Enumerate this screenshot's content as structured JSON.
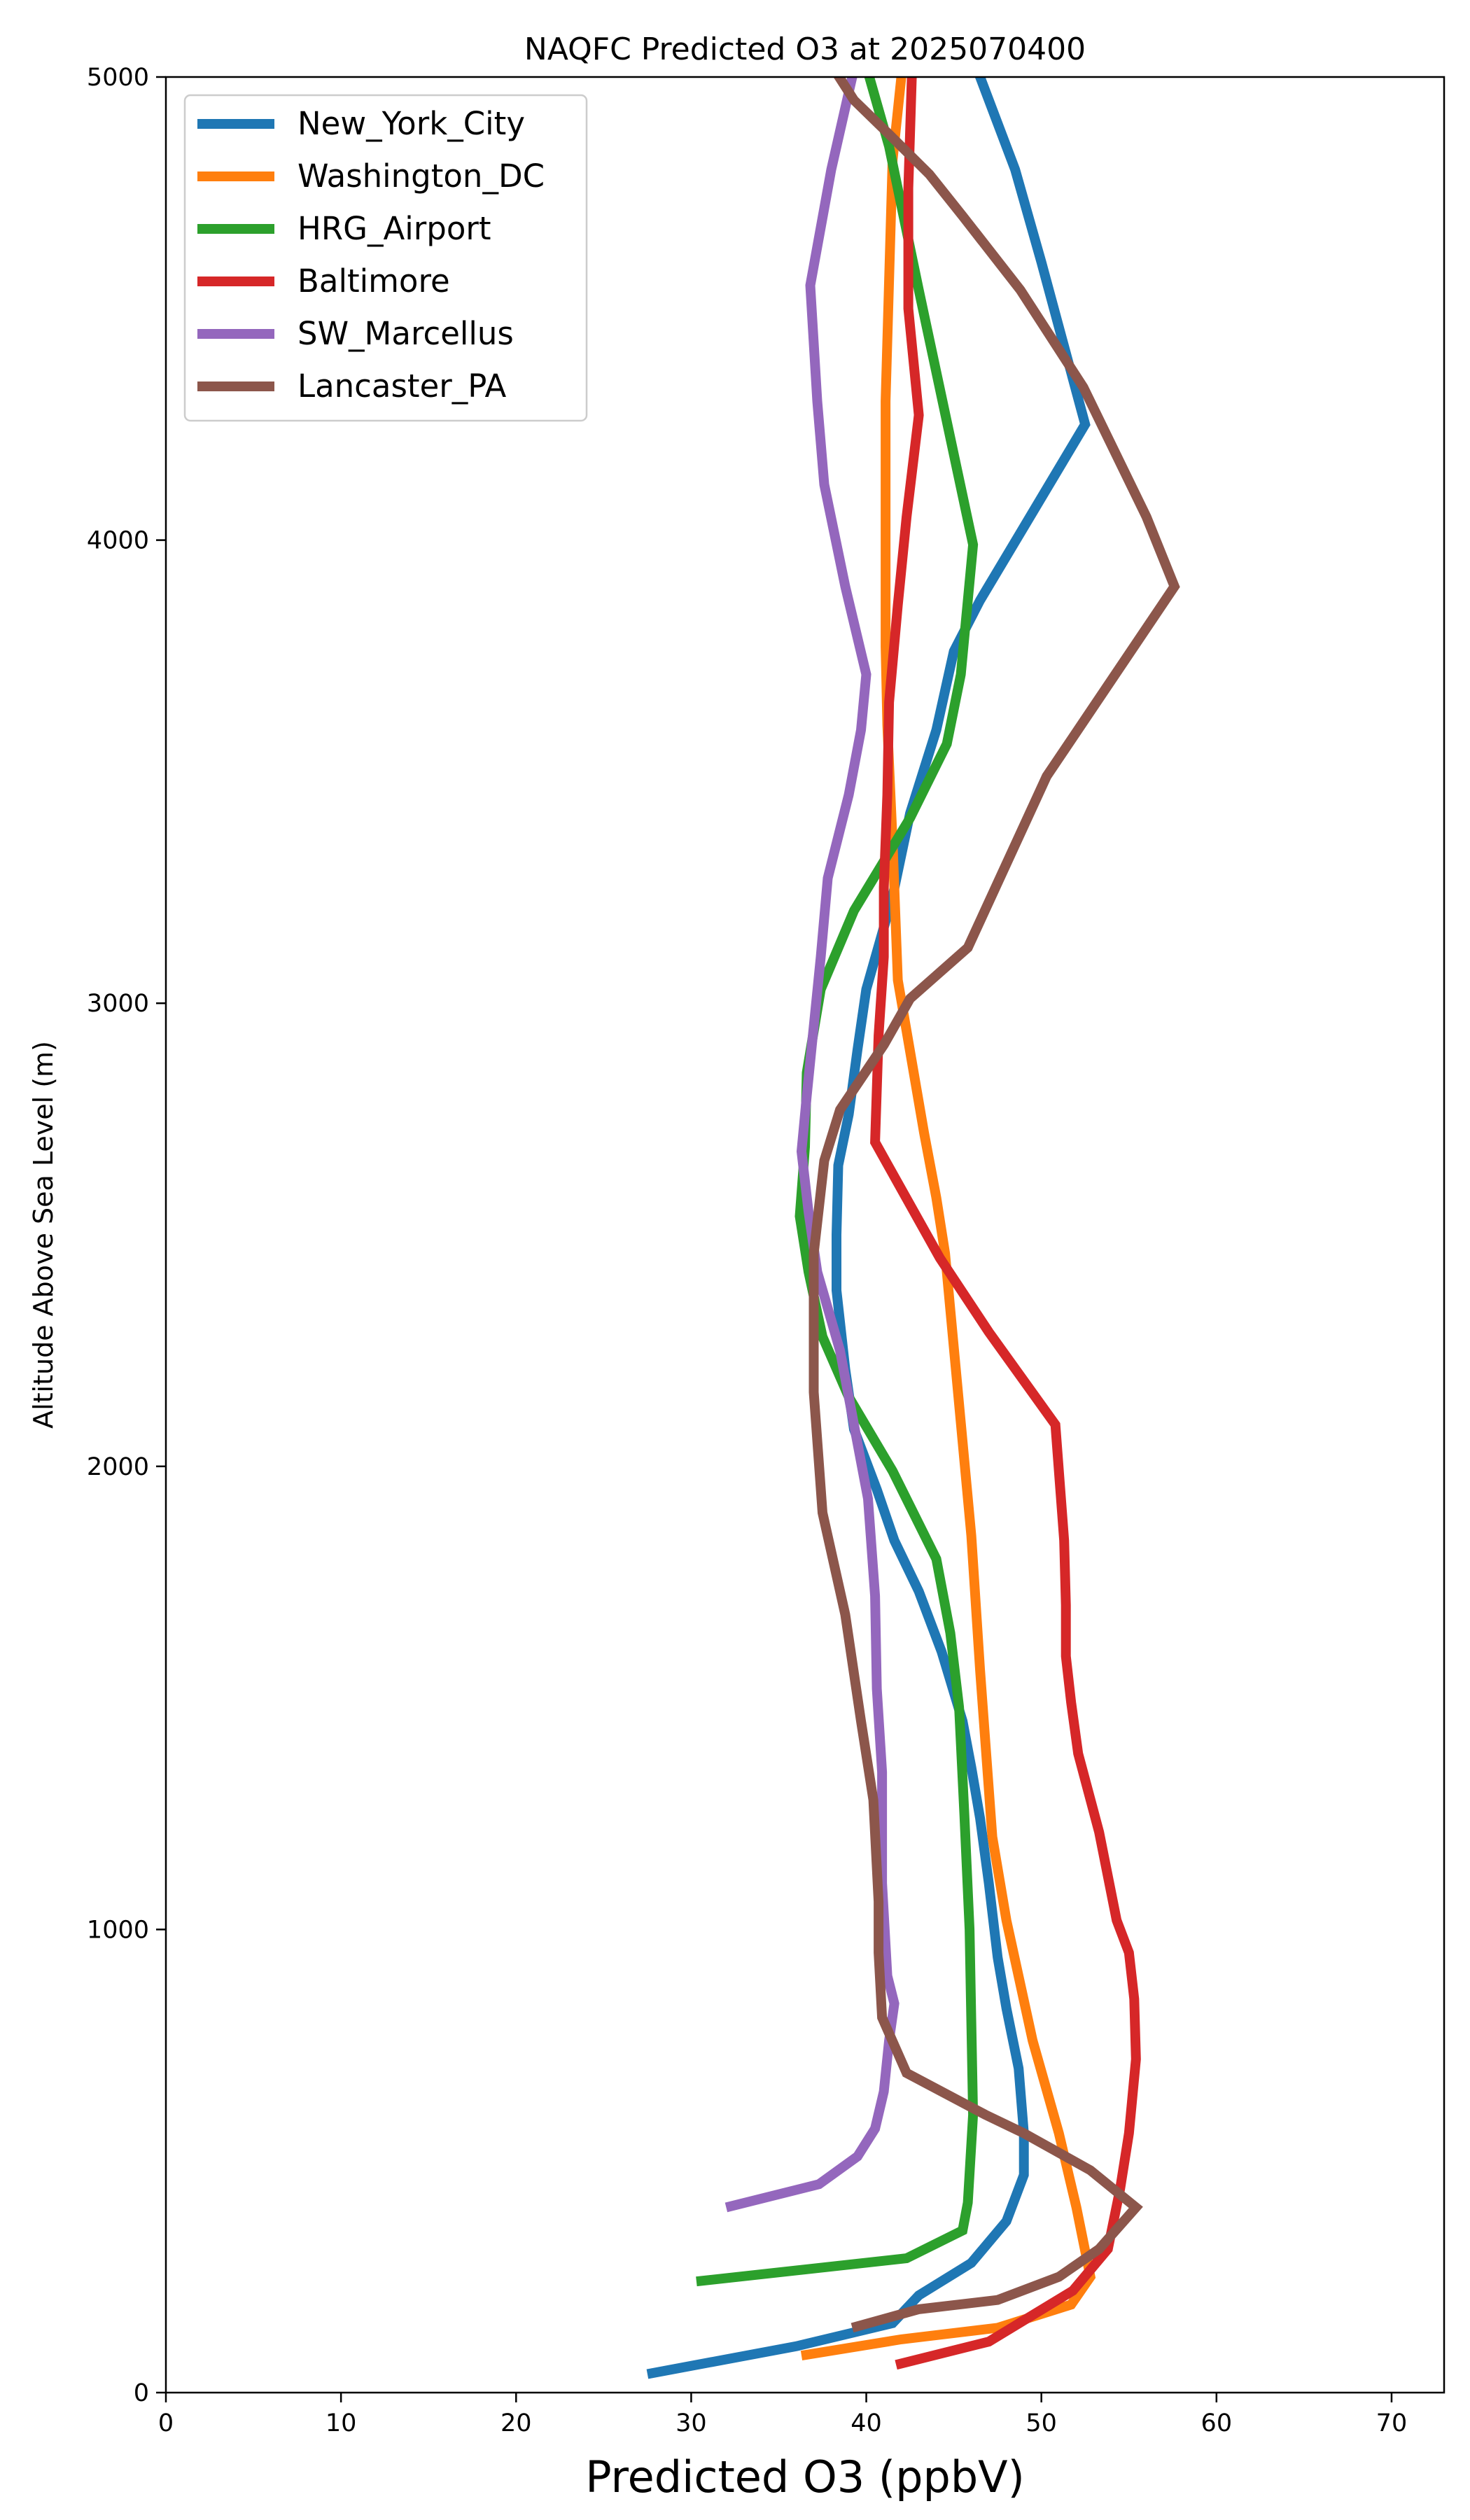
{
  "chart_data": {
    "type": "line",
    "title": "NAQFC Predicted O3 at 2025070400",
    "xlabel": "Predicted O3 (ppbV)",
    "ylabel": "Altitude Above Sea Level (m)",
    "xlim": [
      0,
      73
    ],
    "ylim": [
      0,
      5000
    ],
    "xticks": [
      0,
      10,
      20,
      30,
      40,
      50,
      60,
      70
    ],
    "yticks": [
      0,
      1000,
      2000,
      3000,
      4000,
      5000
    ],
    "grid": false,
    "legend_position": "top-left",
    "series": [
      {
        "name": "New_York_City",
        "color": "#1f77b4",
        "points": [
          [
            27.5,
            40
          ],
          [
            36,
            100
          ],
          [
            41.5,
            150
          ],
          [
            43,
            210
          ],
          [
            46,
            280
          ],
          [
            48,
            370
          ],
          [
            49,
            470
          ],
          [
            49,
            560
          ],
          [
            48.7,
            700
          ],
          [
            48,
            830
          ],
          [
            47.5,
            940
          ],
          [
            47,
            1100
          ],
          [
            46.5,
            1240
          ],
          [
            46,
            1350
          ],
          [
            45.5,
            1450
          ],
          [
            44.3,
            1600
          ],
          [
            43,
            1730
          ],
          [
            41.6,
            1840
          ],
          [
            40.6,
            1950
          ],
          [
            39.3,
            2080
          ],
          [
            38.8,
            2210
          ],
          [
            38.3,
            2380
          ],
          [
            38.3,
            2500
          ],
          [
            38.4,
            2650
          ],
          [
            39,
            2760
          ],
          [
            39.5,
            2900
          ],
          [
            40,
            3030
          ],
          [
            41.5,
            3230
          ],
          [
            42.5,
            3410
          ],
          [
            44,
            3590
          ],
          [
            45,
            3760
          ],
          [
            46.5,
            3870
          ],
          [
            49.5,
            4060
          ],
          [
            52.5,
            4250
          ],
          [
            50,
            4600
          ],
          [
            48.5,
            4800
          ],
          [
            46,
            5050
          ]
        ]
      },
      {
        "name": "Washington_DC",
        "color": "#ff7f0e",
        "points": [
          [
            36.3,
            80
          ],
          [
            42,
            115
          ],
          [
            47.5,
            140
          ],
          [
            51.7,
            190
          ],
          [
            52.8,
            250
          ],
          [
            52,
            400
          ],
          [
            51,
            560
          ],
          [
            49.5,
            760
          ],
          [
            48,
            1020
          ],
          [
            47.2,
            1200
          ],
          [
            46.5,
            1560
          ],
          [
            46,
            1850
          ],
          [
            44.5,
            2460
          ],
          [
            44,
            2580
          ],
          [
            43.3,
            2720
          ],
          [
            41.8,
            3050
          ],
          [
            41.5,
            3350
          ],
          [
            41.2,
            3600
          ],
          [
            41.1,
            3770
          ],
          [
            41.1,
            4300
          ],
          [
            41.5,
            4820
          ],
          [
            42,
            5000
          ]
        ]
      },
      {
        "name": "HRG_Airport",
        "color": "#2ca02c",
        "points": [
          [
            30.3,
            240
          ],
          [
            42.3,
            290
          ],
          [
            45.5,
            350
          ],
          [
            45.8,
            410
          ],
          [
            46.1,
            600
          ],
          [
            46,
            800
          ],
          [
            45.9,
            1000
          ],
          [
            45.6,
            1250
          ],
          [
            45.3,
            1480
          ],
          [
            44.8,
            1640
          ],
          [
            44,
            1800
          ],
          [
            41.5,
            1990
          ],
          [
            39,
            2150
          ],
          [
            37.5,
            2280
          ],
          [
            36.7,
            2420
          ],
          [
            36.2,
            2540
          ],
          [
            36.5,
            2690
          ],
          [
            36.6,
            2850
          ],
          [
            37.4,
            3030
          ],
          [
            39.3,
            3200
          ],
          [
            42.5,
            3400
          ],
          [
            44.6,
            3560
          ],
          [
            45.4,
            3710
          ],
          [
            46.1,
            3990
          ],
          [
            43,
            4540
          ],
          [
            41.3,
            4850
          ],
          [
            39.8,
            5050
          ]
        ]
      },
      {
        "name": "Baltimore",
        "color": "#d62728",
        "points": [
          [
            41.7,
            60
          ],
          [
            47,
            110
          ],
          [
            51.8,
            220
          ],
          [
            53.8,
            310
          ],
          [
            54.5,
            440
          ],
          [
            55,
            560
          ],
          [
            55.4,
            720
          ],
          [
            55.3,
            850
          ],
          [
            55,
            950
          ],
          [
            54.3,
            1020
          ],
          [
            53.3,
            1210
          ],
          [
            52.1,
            1380
          ],
          [
            51.7,
            1490
          ],
          [
            51.4,
            1590
          ],
          [
            51.4,
            1700
          ],
          [
            51.3,
            1840
          ],
          [
            50.8,
            2090
          ],
          [
            47,
            2290
          ],
          [
            44.2,
            2450
          ],
          [
            40.5,
            2700
          ],
          [
            40.7,
            2930
          ],
          [
            41,
            3100
          ],
          [
            41,
            3250
          ],
          [
            41.2,
            3450
          ],
          [
            41.3,
            3650
          ],
          [
            41.8,
            3860
          ],
          [
            42.3,
            4050
          ],
          [
            43,
            4270
          ],
          [
            42.4,
            4500
          ],
          [
            42.4,
            4760
          ],
          [
            42.6,
            5000
          ]
        ]
      },
      {
        "name": "SW_Marcellus",
        "color": "#9467bd",
        "points": [
          [
            32,
            400
          ],
          [
            37.3,
            450
          ],
          [
            39.5,
            510
          ],
          [
            40.5,
            570
          ],
          [
            41,
            650
          ],
          [
            41.3,
            760
          ],
          [
            41.6,
            840
          ],
          [
            41.2,
            900
          ],
          [
            40.9,
            1100
          ],
          [
            40.9,
            1340
          ],
          [
            40.6,
            1520
          ],
          [
            40.5,
            1720
          ],
          [
            40.1,
            1930
          ],
          [
            39.3,
            2090
          ],
          [
            38.5,
            2250
          ],
          [
            37.2,
            2420
          ],
          [
            36.7,
            2550
          ],
          [
            36.3,
            2680
          ],
          [
            36.6,
            2800
          ],
          [
            37,
            2950
          ],
          [
            37.4,
            3100
          ],
          [
            37.8,
            3270
          ],
          [
            39,
            3450
          ],
          [
            39.7,
            3590
          ],
          [
            40,
            3710
          ],
          [
            38.8,
            3900
          ],
          [
            37.6,
            4120
          ],
          [
            37.2,
            4300
          ],
          [
            36.8,
            4550
          ],
          [
            38,
            4800
          ],
          [
            39.5,
            5050
          ]
        ]
      },
      {
        "name": "Lancaster_PA",
        "color": "#8c564b",
        "points": [
          [
            39.2,
            140
          ],
          [
            43,
            180
          ],
          [
            47.5,
            200
          ],
          [
            51,
            250
          ],
          [
            53.3,
            310
          ],
          [
            55.4,
            400
          ],
          [
            52.8,
            480
          ],
          [
            49,
            560
          ],
          [
            46.8,
            600
          ],
          [
            42.3,
            690
          ],
          [
            40.9,
            810
          ],
          [
            40.7,
            950
          ],
          [
            40.7,
            1060
          ],
          [
            40.4,
            1280
          ],
          [
            39.7,
            1450
          ],
          [
            38.8,
            1680
          ],
          [
            37.5,
            1900
          ],
          [
            37,
            2160
          ],
          [
            37,
            2460
          ],
          [
            37.6,
            2660
          ],
          [
            38.5,
            2770
          ],
          [
            41,
            2910
          ],
          [
            42.5,
            3010
          ],
          [
            45.8,
            3120
          ],
          [
            50.3,
            3490
          ],
          [
            57.6,
            3900
          ],
          [
            56,
            4050
          ],
          [
            52.4,
            4330
          ],
          [
            48.8,
            4540
          ],
          [
            45.5,
            4700
          ],
          [
            43.6,
            4790
          ],
          [
            41.2,
            4880
          ],
          [
            39.3,
            4950
          ],
          [
            37.6,
            5050
          ]
        ]
      }
    ]
  }
}
